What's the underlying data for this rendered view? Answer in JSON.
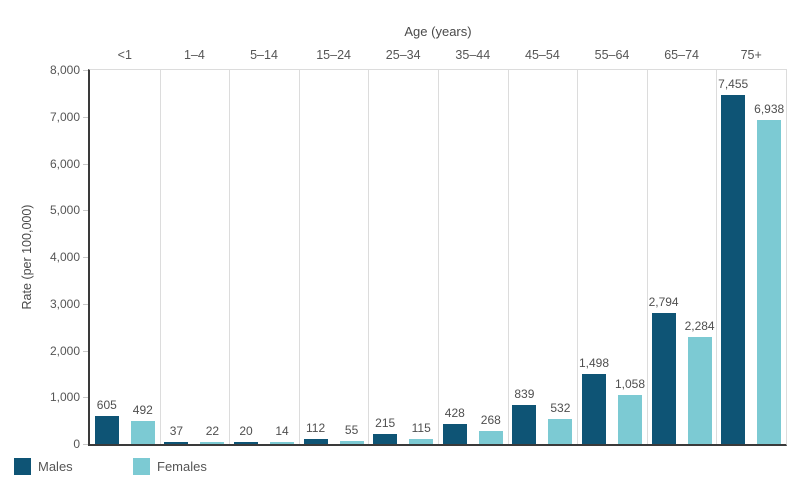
{
  "chart_data": {
    "type": "bar",
    "title": "",
    "xlabel": "Age (years)",
    "ylabel": "Rate (per 100,000)",
    "categories": [
      "<1",
      "1–4",
      "5–14",
      "15–24",
      "25–34",
      "35–44",
      "45–54",
      "55–64",
      "65–74",
      "75+"
    ],
    "series": [
      {
        "name": "Males",
        "color": "#0E5475",
        "values": [
          605,
          37,
          20,
          112,
          215,
          428,
          839,
          1498,
          2794,
          7455
        ]
      },
      {
        "name": "Females",
        "color": "#7CCAD3",
        "values": [
          492,
          22,
          14,
          55,
          115,
          268,
          532,
          1058,
          2284,
          6938
        ]
      }
    ],
    "ylim": [
      0,
      8000
    ],
    "ytick_step": 1000,
    "yticks": [
      "0",
      "1,000",
      "2,000",
      "3,000",
      "4,000",
      "5,000",
      "6,000",
      "7,000",
      "8,000"
    ],
    "bar_value_labels": [
      "605",
      "492",
      "37",
      "22",
      "20",
      "14",
      "112",
      "55",
      "215",
      "115",
      "428",
      "268",
      "839",
      "532",
      "1,498",
      "1,058",
      "2,794",
      "2,284",
      "7,455",
      "6,938"
    ],
    "legend_position": "bottom-left",
    "grid": "vertical column separators only, no horizontal gridlines"
  },
  "colors": {
    "males": "#0E5475",
    "females": "#7CCAD3",
    "axis": "#3a3a3a",
    "separator": "#dcdcdc",
    "text": "#555555"
  }
}
